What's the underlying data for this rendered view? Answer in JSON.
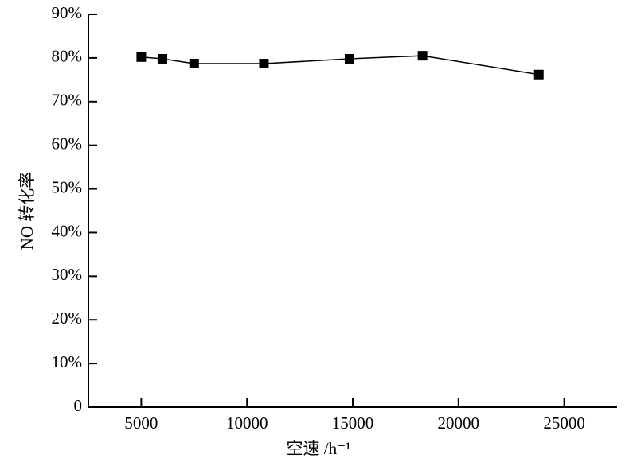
{
  "chart_data": {
    "type": "line",
    "x_label": "空速 /h⁻¹",
    "y_label": "NO 转化率",
    "x": [
      5000,
      6000,
      7500,
      10800,
      14850,
      18300,
      23800
    ],
    "series": [
      {
        "name": "NO",
        "color": "#000000",
        "values": [
          80.2,
          79.8,
          78.7,
          78.7,
          79.8,
          80.5,
          76.2
        ]
      }
    ],
    "xlim": [
      2500,
      27500
    ],
    "xticks": [
      5000,
      10000,
      15000,
      20000,
      25000
    ],
    "ylim": [
      0,
      90
    ],
    "yticks": [
      0,
      {
        "value": 10,
        "label": "10%"
      },
      {
        "value": 20,
        "label": "20%"
      },
      {
        "value": 30,
        "label": "30%"
      },
      {
        "value": 40,
        "label": "40%"
      },
      {
        "value": 50,
        "label": "50%"
      },
      {
        "value": 60,
        "label": "60%"
      },
      {
        "value": 70,
        "label": "70%"
      },
      {
        "value": 80,
        "label": "80%"
      },
      {
        "value": 90,
        "label": "90%"
      }
    ],
    "grid": false
  }
}
